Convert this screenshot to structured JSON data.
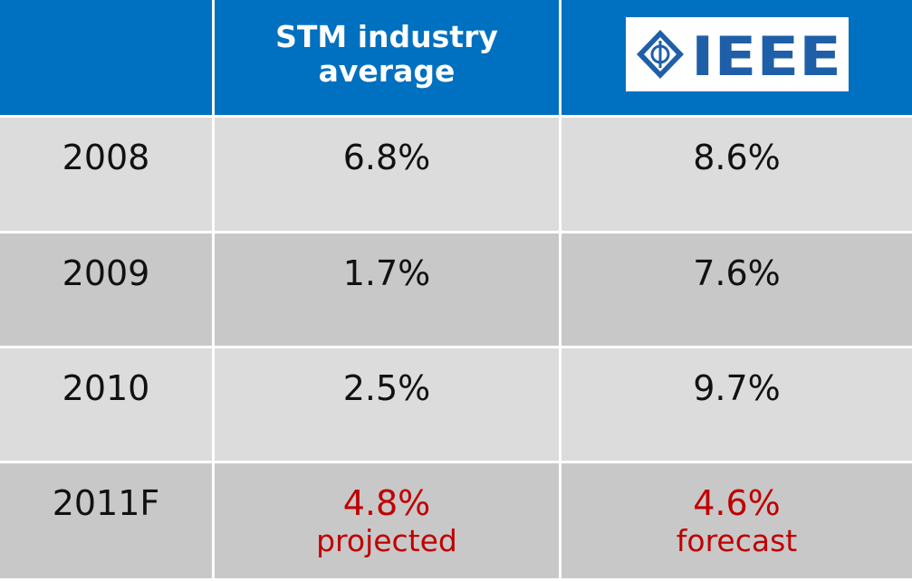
{
  "table": {
    "columns": [
      "STM industry average",
      "IEEE"
    ],
    "rows": [
      {
        "label": "2008",
        "values": [
          "6.8%",
          "8.6%"
        ]
      },
      {
        "label": "2009",
        "values": [
          "1.7%",
          "7.6%"
        ]
      },
      {
        "label": "2010",
        "values": [
          "2.5%",
          "9.7%"
        ]
      },
      {
        "label": "2011F",
        "values": [
          "4.8%",
          "4.6%"
        ],
        "notes": [
          "projected",
          "forecast"
        ],
        "color": "#c00000"
      }
    ]
  }
}
